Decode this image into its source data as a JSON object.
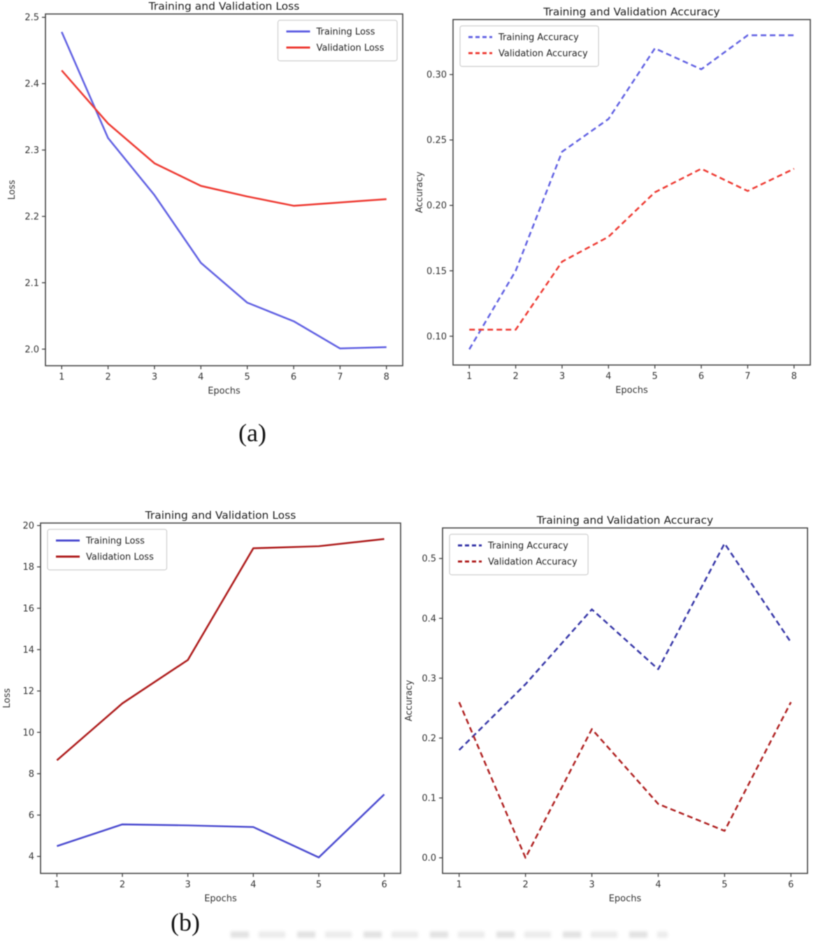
{
  "figure_labels": {
    "a": "(a)",
    "b": "(b)"
  },
  "chart_data": [
    {
      "id": "loss-a",
      "type": "line",
      "title": "Training and Validation Loss",
      "xlabel": "Epochs",
      "ylabel": "Loss",
      "x": [
        1,
        2,
        3,
        4,
        5,
        6,
        7,
        8
      ],
      "xtick_labels": [
        "1",
        "2",
        "3",
        "4",
        "5",
        "6",
        "7",
        "8"
      ],
      "xlim": [
        0.65,
        8.35
      ],
      "ylim": [
        1.975,
        2.505
      ],
      "ytick_values": [
        2.0,
        2.1,
        2.2,
        2.3,
        2.4,
        2.5
      ],
      "ytick_labels": [
        "2.0",
        "2.1",
        "2.2",
        "2.3",
        "2.4",
        "2.5"
      ],
      "grid": false,
      "legend_position": "upper-right",
      "series": [
        {
          "name": "Training Loss",
          "color": "#6262e3",
          "dash": false,
          "values": [
            2.478,
            2.318,
            2.232,
            2.13,
            2.07,
            2.042,
            2.001,
            2.003
          ]
        },
        {
          "name": "Validation Loss",
          "color": "#ee3b33",
          "dash": false,
          "values": [
            2.42,
            2.34,
            2.28,
            2.246,
            2.23,
            2.216,
            2.221,
            2.226
          ]
        }
      ]
    },
    {
      "id": "accuracy-a",
      "type": "line",
      "title": "Training and Validation Accuracy",
      "xlabel": "Epochs",
      "ylabel": "Accuracy",
      "x": [
        1,
        2,
        3,
        4,
        5,
        6,
        7,
        8
      ],
      "xtick_labels": [
        "1",
        "2",
        "3",
        "4",
        "5",
        "6",
        "7",
        "8"
      ],
      "xlim": [
        0.65,
        8.35
      ],
      "ylim": [
        0.078,
        0.342
      ],
      "ytick_values": [
        0.1,
        0.15,
        0.2,
        0.25,
        0.3
      ],
      "ytick_labels": [
        "0.10",
        "0.15",
        "0.20",
        "0.25",
        "0.30"
      ],
      "grid": false,
      "legend_position": "upper-left",
      "series": [
        {
          "name": "Training Accuracy",
          "color": "#6262e3",
          "dash": true,
          "values": [
            0.09,
            0.15,
            0.241,
            0.266,
            0.32,
            0.304,
            0.33,
            0.33
          ]
        },
        {
          "name": "Validation Accuracy",
          "color": "#ee3b33",
          "dash": true,
          "values": [
            0.105,
            0.105,
            0.157,
            0.176,
            0.21,
            0.228,
            0.211,
            0.228
          ]
        }
      ]
    },
    {
      "id": "loss-b",
      "type": "line",
      "title": "Training and Validation Loss",
      "xlabel": "Epochs",
      "ylabel": "Loss",
      "x": [
        1,
        2,
        3,
        4,
        5,
        6
      ],
      "xtick_labels": [
        "1",
        "2",
        "3",
        "4",
        "5",
        "6"
      ],
      "xlim": [
        0.75,
        6.25
      ],
      "ylim": [
        3.18,
        20.12
      ],
      "ytick_values": [
        4,
        6,
        8,
        10,
        12,
        14,
        16,
        18,
        20
      ],
      "ytick_labels": [
        "4",
        "6",
        "8",
        "10",
        "12",
        "14",
        "16",
        "18",
        "20"
      ],
      "grid": false,
      "legend_position": "upper-left",
      "series": [
        {
          "name": "Training Loss",
          "color": "#4c4cd0",
          "dash": false,
          "values": [
            4.5,
            5.55,
            5.5,
            5.42,
            3.95,
            7.0
          ]
        },
        {
          "name": "Validation Loss",
          "color": "#ae1c1c",
          "dash": false,
          "values": [
            8.65,
            11.4,
            13.5,
            18.9,
            19.0,
            19.35
          ]
        }
      ]
    },
    {
      "id": "accuracy-b",
      "type": "line",
      "title": "Training and Validation Accuracy",
      "xlabel": "Epochs",
      "ylabel": "Accuracy",
      "x": [
        1,
        2,
        3,
        4,
        5,
        6
      ],
      "xtick_labels": [
        "1",
        "2",
        "3",
        "4",
        "5",
        "6"
      ],
      "xlim": [
        0.75,
        6.25
      ],
      "ylim": [
        -0.026,
        0.551
      ],
      "ytick_values": [
        0.0,
        0.1,
        0.2,
        0.3,
        0.4,
        0.5
      ],
      "ytick_labels": [
        "0.0",
        "0.1",
        "0.2",
        "0.3",
        "0.4",
        "0.5"
      ],
      "grid": false,
      "legend_position": "upper-left",
      "series": [
        {
          "name": "Training Accuracy",
          "color": "#3737a8",
          "dash": true,
          "values": [
            0.18,
            0.29,
            0.415,
            0.315,
            0.525,
            0.36
          ]
        },
        {
          "name": "Validation Accuracy",
          "color": "#b02222",
          "dash": true,
          "values": [
            0.26,
            0.0,
            0.215,
            0.09,
            0.045,
            0.26
          ]
        }
      ]
    }
  ]
}
